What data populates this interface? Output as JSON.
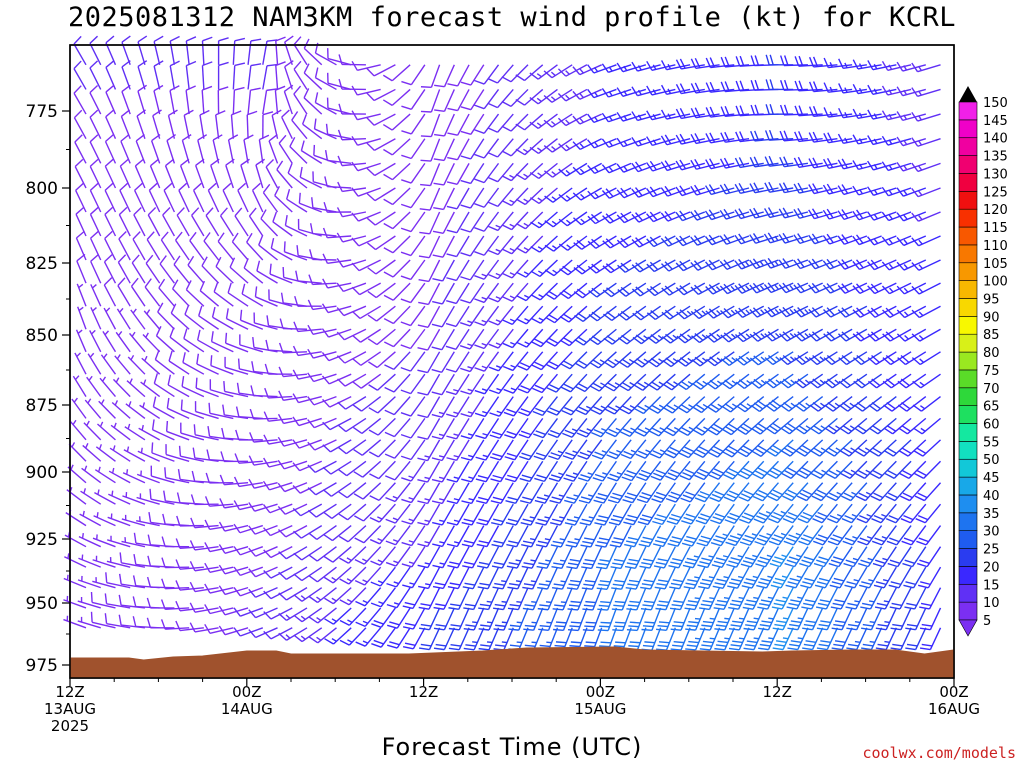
{
  "title": "2025081312 NAM3KM forecast wind profile (kt) for KCRL",
  "xlabel": "Forecast Time (UTC)",
  "credit": "coolwx.com/models",
  "chart_data": {
    "type": "wind_barb_time_height",
    "model": "NAM3KM",
    "station": "KCRL",
    "init": "2025081312",
    "units": "kt",
    "y_axis": {
      "label": "",
      "ticks": [
        775,
        800,
        825,
        850,
        875,
        900,
        925,
        950,
        975
      ],
      "range_hpa": [
        960,
        759
      ],
      "scale": "pressure"
    },
    "x_axis": {
      "range_hours": [
        0,
        60
      ],
      "ticks": [
        {
          "hour": 0,
          "lines": [
            "12Z",
            "13AUG",
            "2025"
          ]
        },
        {
          "hour": 12,
          "lines": [
            "00Z",
            "14AUG"
          ]
        },
        {
          "hour": 24,
          "lines": [
            "12Z"
          ]
        },
        {
          "hour": 36,
          "lines": [
            "00Z",
            "15AUG"
          ]
        },
        {
          "hour": 48,
          "lines": [
            "12Z"
          ]
        },
        {
          "hour": 60,
          "lines": [
            "00Z",
            "16AUG"
          ]
        }
      ]
    },
    "colorbar": {
      "levels": [
        5,
        10,
        15,
        20,
        25,
        30,
        35,
        40,
        45,
        50,
        55,
        60,
        65,
        70,
        75,
        80,
        85,
        90,
        95,
        100,
        105,
        110,
        115,
        120,
        125,
        130,
        135,
        140,
        145,
        150
      ],
      "colors": [
        "#7b2ff2",
        "#6030f5",
        "#3a28ff",
        "#2a3cf0",
        "#1f5cf0",
        "#1e74f0",
        "#1e8ef0",
        "#18a8e8",
        "#12c8d8",
        "#12e0c0",
        "#14e8a0",
        "#1ee060",
        "#2ed83a",
        "#5adc28",
        "#9ae820",
        "#d8f018",
        "#f8f800",
        "#f8d800",
        "#f8b800",
        "#f89800",
        "#f87800",
        "#f85800",
        "#f83000",
        "#f01010",
        "#f00040",
        "#f00070",
        "#f000a0",
        "#f000c8",
        "#f020e8",
        "#f040f8"
      ]
    },
    "sample_profiles": [
      {
        "hour": 0,
        "levels": [
          {
            "hpa": 775,
            "dir": 330,
            "spd": 10
          },
          {
            "hpa": 850,
            "dir": 340,
            "spd": 7
          },
          {
            "hpa": 925,
            "dir": 300,
            "spd": 7
          },
          {
            "hpa": 950,
            "dir": 290,
            "spd": 7
          }
        ]
      },
      {
        "hour": 12,
        "levels": [
          {
            "hpa": 775,
            "dir": 10,
            "spd": 10
          },
          {
            "hpa": 850,
            "dir": 290,
            "spd": 8
          },
          {
            "hpa": 925,
            "dir": 250,
            "spd": 8
          },
          {
            "hpa": 950,
            "dir": 250,
            "spd": 10
          }
        ]
      },
      {
        "hour": 24,
        "levels": [
          {
            "hpa": 775,
            "dir": 200,
            "spd": 8
          },
          {
            "hpa": 850,
            "dir": 210,
            "spd": 10
          },
          {
            "hpa": 925,
            "dir": 210,
            "spd": 15
          },
          {
            "hpa": 950,
            "dir": 205,
            "spd": 20
          }
        ]
      },
      {
        "hour": 36,
        "levels": [
          {
            "hpa": 775,
            "dir": 250,
            "spd": 15
          },
          {
            "hpa": 850,
            "dir": 230,
            "spd": 22
          },
          {
            "hpa": 925,
            "dir": 205,
            "spd": 30
          },
          {
            "hpa": 950,
            "dir": 200,
            "spd": 30
          }
        ]
      },
      {
        "hour": 48,
        "levels": [
          {
            "hpa": 775,
            "dir": 270,
            "spd": 20
          },
          {
            "hpa": 850,
            "dir": 240,
            "spd": 25
          },
          {
            "hpa": 925,
            "dir": 215,
            "spd": 35
          },
          {
            "hpa": 950,
            "dir": 205,
            "spd": 35
          }
        ]
      },
      {
        "hour": 60,
        "levels": [
          {
            "hpa": 775,
            "dir": 250,
            "spd": 12
          },
          {
            "hpa": 850,
            "dir": 240,
            "spd": 15
          },
          {
            "hpa": 925,
            "dir": 215,
            "spd": 15
          },
          {
            "hpa": 950,
            "dir": 205,
            "spd": 15
          }
        ]
      }
    ],
    "terrain_color": "#a0522d"
  }
}
